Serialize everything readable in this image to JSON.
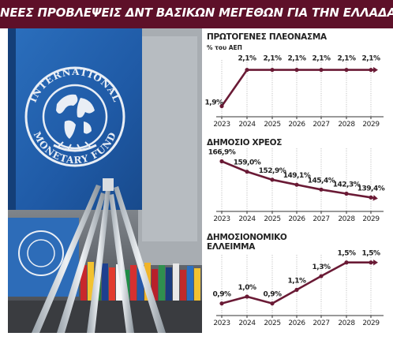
{
  "header": {
    "title": "ΝΕΕΣ ΠΡΟΒΛΕΨΕΙΣ ΔΝΤ ΒΑΣΙΚΩΝ ΜΕΓΕΘΩΝ ΓΙΑ ΤΗΝ ΕΛΛΑΔΑ",
    "bg_color": "#5e1029"
  },
  "photo": {
    "banner_text_top": "INTERNATIONAL",
    "banner_text_bottom": "MONETARY FUND"
  },
  "colors": {
    "line": "#6a1a35",
    "axis": "#333333",
    "grid": "#9a9a9a",
    "header_bg": "#5e1029"
  },
  "chart_data": [
    {
      "type": "line",
      "title": "ΠΡΩΤΟΓΕΝΕΣ ΠΛΕΟΝΑΣΜΑ",
      "subtitle": "% του ΑΕΠ",
      "x": [
        "2023",
        "2024",
        "2025",
        "2026",
        "2027",
        "2028",
        "2029"
      ],
      "values": [
        1.9,
        2.1,
        2.1,
        2.1,
        2.1,
        2.1,
        2.1
      ],
      "labels": [
        "1,9%",
        "2,1%",
        "2,1%",
        "2,1%",
        "2,1%",
        "2,1%",
        "2,1%"
      ],
      "ylim": [
        1.85,
        2.12
      ],
      "grid": true,
      "arrow": true
    },
    {
      "type": "line",
      "title": "ΔΗΜΟΣΙΟ ΧΡΕΟΣ",
      "subtitle": "",
      "x": [
        "2023",
        "2024",
        "2025",
        "2026",
        "2027",
        "2028",
        "2029"
      ],
      "values": [
        166.9,
        159.0,
        152.9,
        149.1,
        145.4,
        142.3,
        139.4
      ],
      "labels": [
        "166,9%",
        "159,0%",
        "152,9%",
        "149,1%",
        "145,4%",
        "142,3%",
        "139,4%"
      ],
      "ylim": [
        136,
        172
      ],
      "grid": true,
      "arrow": true
    },
    {
      "type": "line",
      "title": "ΔΗΜΟΣΙΟΝΟΜΙΚΟ ΕΛΛΕΙΜΜΑ",
      "subtitle": "",
      "x": [
        "2023",
        "2024",
        "2025",
        "2026",
        "2027",
        "2028",
        "2029"
      ],
      "values": [
        0.9,
        1.0,
        0.9,
        1.1,
        1.3,
        1.5,
        1.5
      ],
      "labels": [
        "0,9%",
        "1,0%",
        "0,9%",
        "1,1%",
        "1,3%",
        "1,5%",
        "1,5%"
      ],
      "ylim": [
        0.85,
        1.52
      ],
      "grid": true,
      "arrow": true
    }
  ]
}
